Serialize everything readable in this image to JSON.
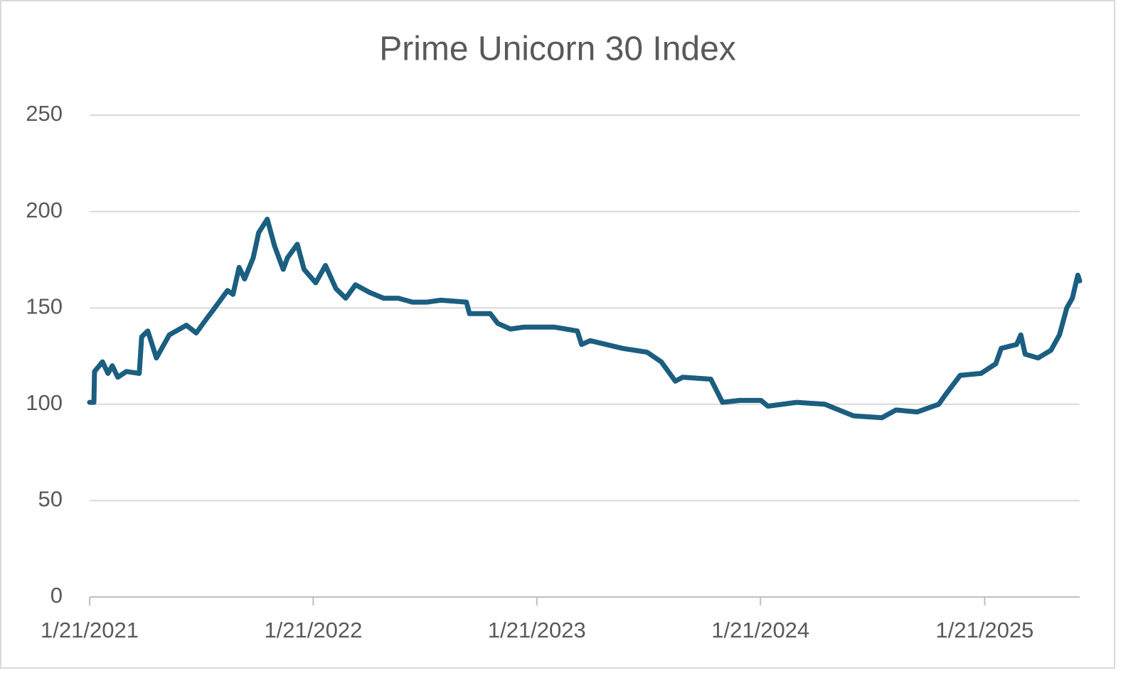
{
  "chart_data": {
    "type": "line",
    "title": "Prime Unicorn 30 Index",
    "color": "#1b5e80",
    "grid": true,
    "ylim": [
      0,
      250
    ],
    "yticks": [
      0,
      50,
      100,
      150,
      200,
      250
    ],
    "xlim": [
      "2021-01-21",
      "2025-06-25"
    ],
    "xticks": [
      {
        "value": "2021-01-21",
        "label": "1/21/2021"
      },
      {
        "value": "2022-01-21",
        "label": "1/21/2022"
      },
      {
        "value": "2023-01-21",
        "label": "1/21/2023"
      },
      {
        "value": "2024-01-21",
        "label": "1/21/2024"
      },
      {
        "value": "2025-01-21",
        "label": "1/21/2025"
      }
    ],
    "x": [
      "2021-01-21",
      "2021-01-28",
      "2021-01-29",
      "2021-02-11",
      "2021-02-20",
      "2021-02-27",
      "2021-03-08",
      "2021-03-22",
      "2021-04-12",
      "2021-04-16",
      "2021-04-26",
      "2021-05-10",
      "2021-05-31",
      "2021-06-28",
      "2021-07-14",
      "2021-07-30",
      "2021-08-11",
      "2021-09-03",
      "2021-09-12",
      "2021-09-22",
      "2021-10-01",
      "2021-10-15",
      "2021-10-24",
      "2021-11-07",
      "2021-11-19",
      "2021-12-03",
      "2021-12-10",
      "2021-12-26",
      "2022-01-06",
      "2022-01-25",
      "2022-02-10",
      "2022-02-27",
      "2022-03-15",
      "2022-03-31",
      "2022-04-23",
      "2022-05-16",
      "2022-06-09",
      "2022-07-02",
      "2022-07-25",
      "2022-08-17",
      "2022-09-28",
      "2022-10-03",
      "2022-11-06",
      "2022-11-18",
      "2022-12-09",
      "2022-12-30",
      "2023-02-19",
      "2023-03-28",
      "2023-04-04",
      "2023-04-18",
      "2023-06-10",
      "2023-07-20",
      "2023-08-12",
      "2023-09-04",
      "2023-09-16",
      "2023-11-01",
      "2023-11-20",
      "2023-12-18",
      "2024-01-22",
      "2024-02-02",
      "2024-03-20",
      "2024-05-05",
      "2024-05-28",
      "2024-06-21",
      "2024-08-06",
      "2024-08-29",
      "2024-10-03",
      "2024-11-07",
      "2024-11-18",
      "2024-12-12",
      "2025-01-15",
      "2025-02-08",
      "2025-02-17",
      "2025-03-14",
      "2025-03-21",
      "2025-03-28",
      "2025-04-18",
      "2025-05-09",
      "2025-05-23",
      "2025-06-04",
      "2025-06-13",
      "2025-06-22",
      "2025-06-25"
    ],
    "values": [
      101,
      101,
      117,
      122,
      116,
      120,
      114,
      117,
      116,
      135,
      138,
      124,
      136,
      141,
      137,
      144,
      149,
      159,
      157,
      171,
      165,
      176,
      189,
      196,
      182,
      170,
      176,
      183,
      170,
      163,
      172,
      160,
      155,
      162,
      158,
      155,
      155,
      153,
      153,
      154,
      153,
      147,
      147,
      142,
      139,
      140,
      140,
      138,
      131,
      133,
      129,
      127,
      122,
      112,
      114,
      113,
      101,
      102,
      102,
      99,
      101,
      100,
      97,
      94,
      93,
      97,
      96,
      100,
      105,
      115,
      116,
      121,
      129,
      131,
      136,
      126,
      124,
      128,
      136,
      150,
      155,
      167,
      164
    ]
  }
}
